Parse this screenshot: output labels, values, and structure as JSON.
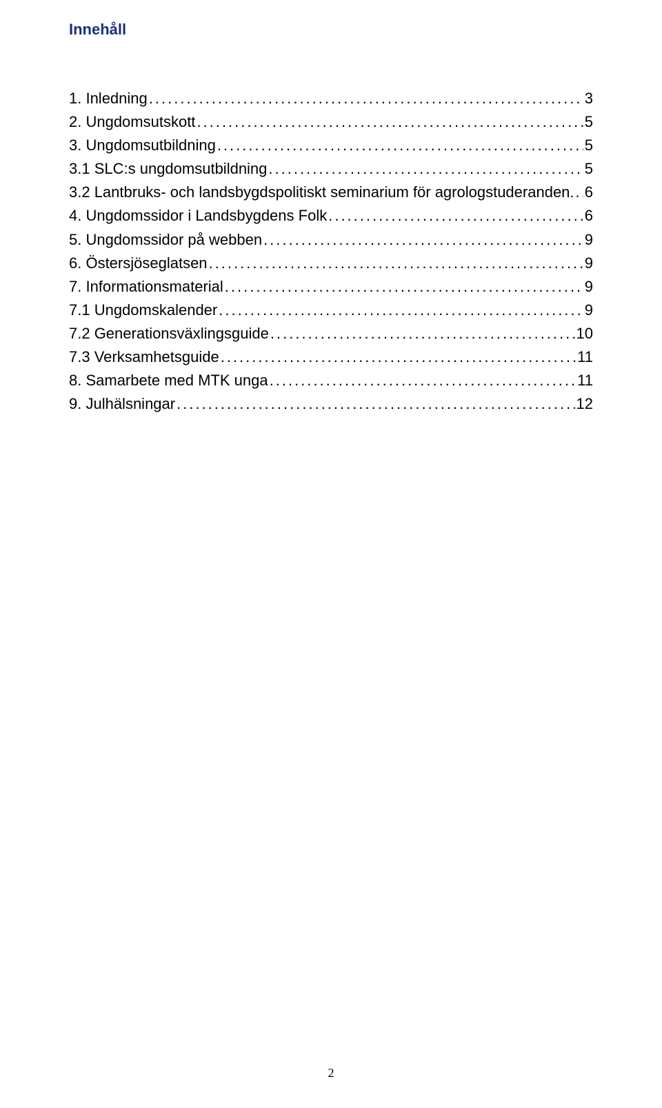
{
  "heading": "Innehåll",
  "toc": [
    {
      "label": "1. Inledning",
      "page": "3"
    },
    {
      "label": "2. Ungdomsutskott",
      "page": "5"
    },
    {
      "label": "3. Ungdomsutbildning",
      "page": "5"
    },
    {
      "label": "3.1 SLC:s ungdomsutbildning",
      "page": "5"
    },
    {
      "label": "3.2 Lantbruks- och landsbygdspolitiskt seminarium för agrologstuderanden.",
      "page": "6"
    },
    {
      "label": "4. Ungdomssidor i Landsbygdens Folk",
      "page": "6"
    },
    {
      "label": "5. Ungdomssidor på webben",
      "page": "9"
    },
    {
      "label": "6. Östersjöseglatsen",
      "page": "9"
    },
    {
      "label": "7. Informationsmaterial",
      "page": "9"
    },
    {
      "label": "7.1 Ungdomskalender",
      "page": "9"
    },
    {
      "label": "7.2 Generationsväxlingsguide",
      "page": "10"
    },
    {
      "label": "7.3 Verksamhetsguide",
      "page": "11"
    },
    {
      "label": "8. Samarbete med MTK unga",
      "page": "11"
    },
    {
      "label": "9. Julhälsningar",
      "page": "12"
    }
  ],
  "pageNumber": "2",
  "colors": {
    "headingColor": "#1b2f78",
    "textColor": "#000000",
    "background": "#ffffff"
  },
  "typography": {
    "headingFontSize": 22,
    "bodyFontSize": 22,
    "fontFamily": "Comic Sans MS"
  }
}
